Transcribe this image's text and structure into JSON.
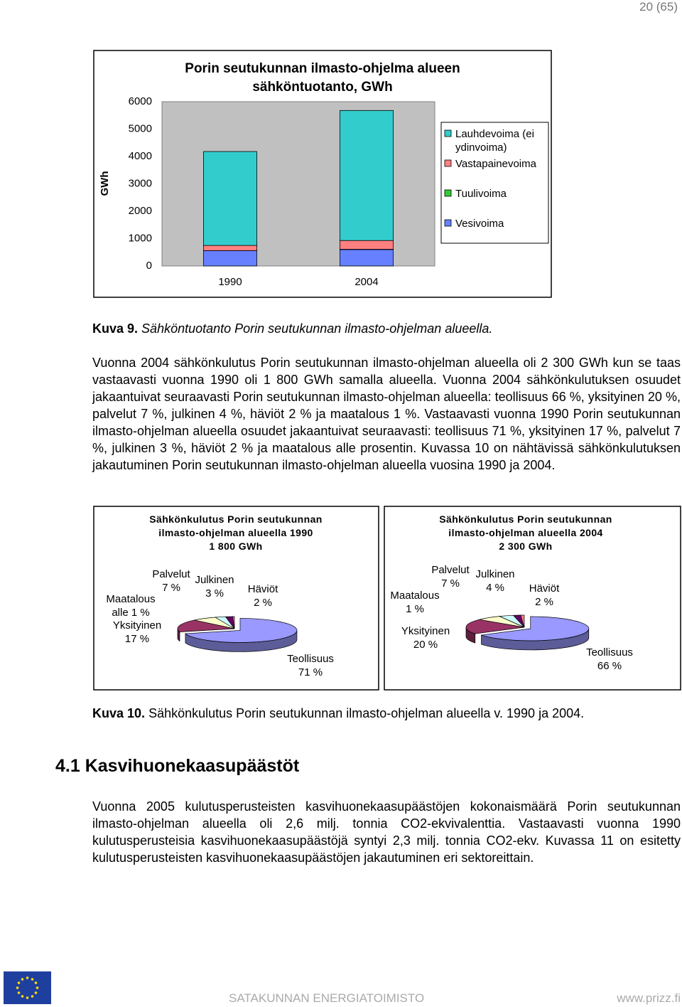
{
  "page_number": "20 (65)",
  "chart_data": [
    {
      "type": "bar",
      "stacked": true,
      "title": "Porin seutukunnan ilmasto-ohjelma alueen sähköntuotanto, GWh",
      "y_label": "GWh",
      "categories": [
        "1990",
        "2004"
      ],
      "series": [
        {
          "name": "Vesivoima",
          "color": "#6680ff",
          "values": [
            560,
            600
          ]
        },
        {
          "name": "Tuulivoima",
          "color": "#33cc33",
          "values": [
            0,
            10
          ]
        },
        {
          "name": "Vastapainevoima",
          "color": "#ff8080",
          "values": [
            190,
            320
          ]
        },
        {
          "name": "Lauhdevoima (ei ydinvoima)",
          "color": "#33cccc",
          "values": [
            3430,
            4750
          ]
        }
      ],
      "ylim": [
        0,
        6000
      ],
      "yticks": [
        0,
        1000,
        2000,
        3000,
        4000,
        5000,
        6000
      ],
      "grid": false,
      "plot_background": "#c0c0c0"
    },
    {
      "type": "pie",
      "title": "Sähkönkulutus Porin seutukunnan ilmasto-ohjelman alueella 1990",
      "subtitle": "1 800 GWh",
      "categories": [
        "Teollisuus",
        "Yksityinen",
        "Palvelut",
        "Julkinen",
        "Häviöt",
        "Maatalous"
      ],
      "values": [
        71,
        17,
        7,
        3,
        2,
        0.5
      ],
      "value_labels": [
        "71 %",
        "17 %",
        "7 %",
        "3 %",
        "2 %",
        "alle 1 %"
      ],
      "colors": [
        "#9999ff",
        "#993366",
        "#ffffcc",
        "#ccffff",
        "#660066",
        "#ff8080"
      ]
    },
    {
      "type": "pie",
      "title": "Sähkönkulutus Porin seutukunnan ilmasto-ohjelman alueella 2004",
      "subtitle": "2 300 GWh",
      "categories": [
        "Teollisuus",
        "Yksityinen",
        "Palvelut",
        "Julkinen",
        "Häviöt",
        "Maatalous"
      ],
      "values": [
        66,
        20,
        7,
        4,
        2,
        1
      ],
      "value_labels": [
        "66 %",
        "20 %",
        "7 %",
        "4 %",
        "2 %",
        "1 %"
      ],
      "colors": [
        "#9999ff",
        "#993366",
        "#ffffcc",
        "#ccffff",
        "#660066",
        "#ff8080"
      ]
    }
  ],
  "figure_9_caption": {
    "label": "Kuva 9.",
    "text": "Sähköntuotanto Porin seutukunnan ilmasto-ohjelman alueella."
  },
  "paragraph_1": "Vuonna 2004 sähkönkulutus Porin seutukunnan ilmasto-ohjelman alueella oli 2 300 GWh kun se taas vastaavasti vuonna 1990 oli 1 800 GWh samalla alueella. Vuonna 2004 säh­könkulutuksen osuudet jakaantuivat seuraavasti Porin seutukunnan ilmasto-ohjelman alu­eella: teollisuus 66 %, yksityinen 20 %, palvelut 7 %, julkinen 4 %, häviöt 2 % ja maatalo­us 1 %. Vastaavasti vuonna 1990 Porin seutukunnan ilmasto-ohjelman alueella osuudet jakaantuivat seuraavasti: teollisuus 71 %, yksityinen 17 %, palvelut 7 %, julkinen 3 %, hä­viöt 2 % ja maatalous alle prosentin. Kuvassa 10 on nähtävissä sähkönkulutuksen jakau­tuminen Porin seutukunnan ilmasto-ohjelman alueella vuosina 1990 ja 2004.",
  "figure_10_caption": {
    "label": "Kuva 10.",
    "text": "Sähkönkulutus Porin seutukunnan ilmasto-ohjelman alueella v. 1990 ja 2004."
  },
  "section": {
    "number": "4.1",
    "title": "Kasvihuonekaasupäästöt"
  },
  "paragraph_2": "Vuonna 2005 kulutusperusteisten kasvihuonekaasupäästöjen kokonaismäärä Porin seu­tukunnan ilmasto-ohjelman alueella oli 2,6 milj. tonnia CO2-ekvivalenttia. Vastaavasti vuonna 1990 kulutusperusteisia kasvihuonekaasupäästöjä syntyi 2,3 milj. tonnia CO2-ekv. Kuvassa 11 on esitetty kulutusperusteisten kasvihuonekaasupäästöjen jakautuminen eri sektoreittain.",
  "footer": {
    "organization": "SATAKUNNAN ENERGIATOIMISTO",
    "website": "www.prizz.fi"
  }
}
